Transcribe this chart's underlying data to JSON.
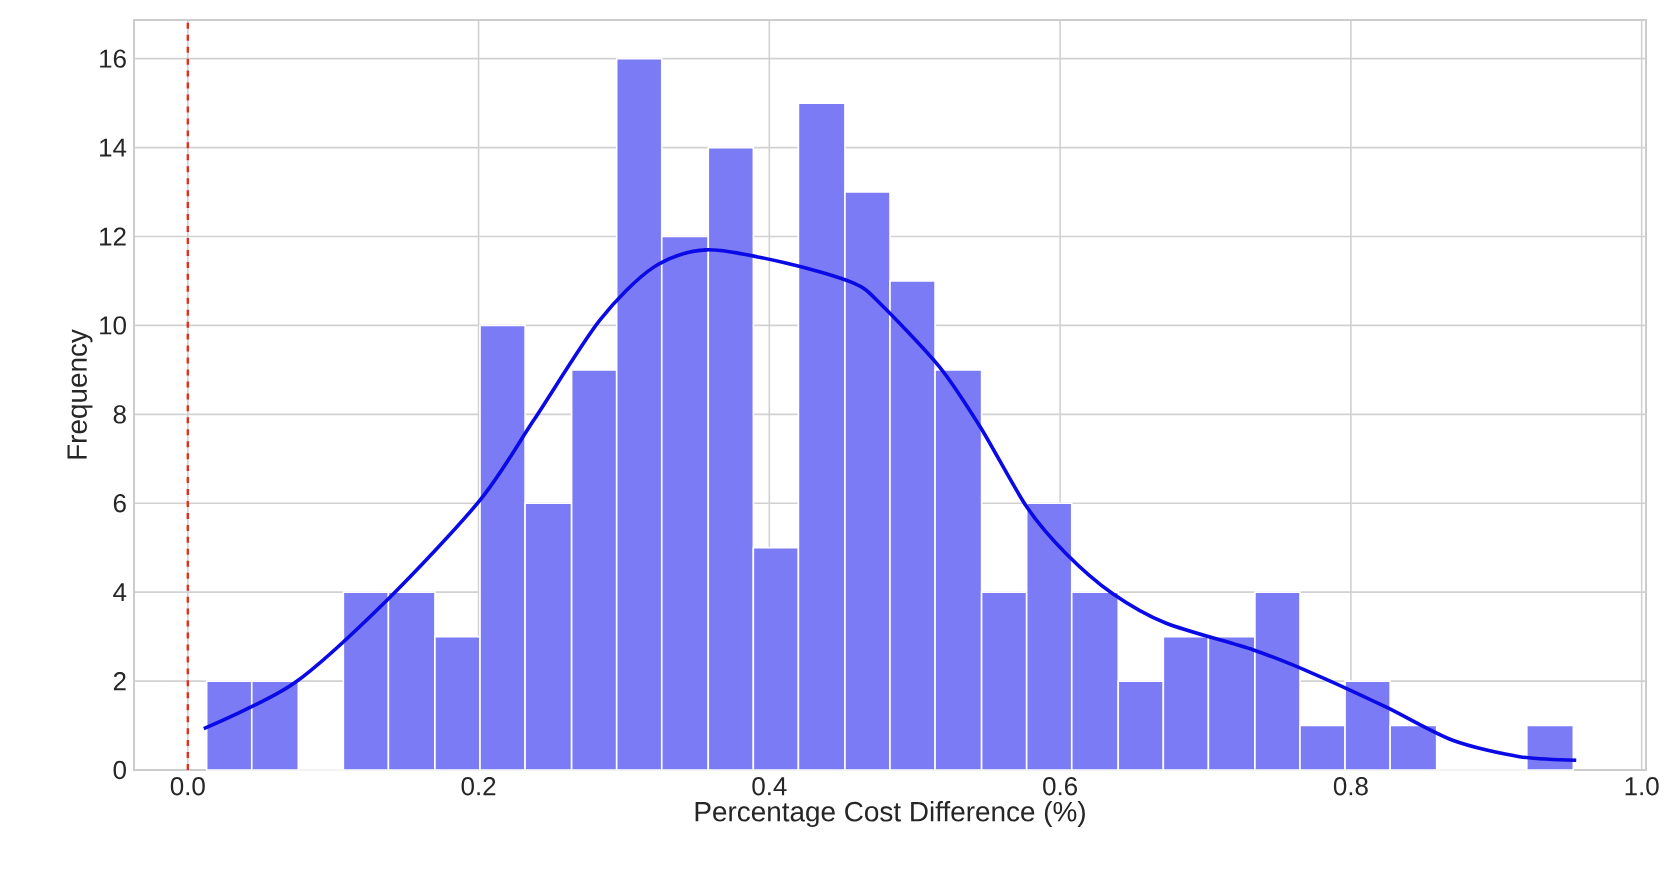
{
  "chart_data": {
    "type": "histogram",
    "xlabel": "Percentage Cost Difference (%)",
    "ylabel": "Frequency",
    "bins": [
      0.013,
      0.044,
      0.076,
      0.107,
      0.138,
      0.17,
      0.201,
      0.232,
      0.264,
      0.295,
      0.326,
      0.358,
      0.389,
      0.42,
      0.452,
      0.483,
      0.514,
      0.546,
      0.577,
      0.608,
      0.64,
      0.671,
      0.702,
      0.734,
      0.765,
      0.796,
      0.827,
      0.859,
      0.921,
      0.953
    ],
    "values": [
      2,
      2,
      0,
      4,
      4,
      3,
      10,
      6,
      9,
      16,
      12,
      14,
      5,
      15,
      13,
      11,
      9,
      4,
      6,
      4,
      2,
      3,
      3,
      4,
      1,
      2,
      1,
      0,
      1
    ],
    "color": "#7b7bf5",
    "series": [
      {
        "type": "line",
        "color": "#0a0ae6",
        "x": [
          0.011,
          0.073,
          0.137,
          0.201,
          0.238,
          0.283,
          0.32,
          0.357,
          0.412,
          0.458,
          0.476,
          0.517,
          0.545,
          0.577,
          0.604,
          0.636,
          0.673,
          0.733,
          0.774,
          0.824,
          0.87,
          0.916,
          0.955
        ],
        "values": [
          0.93,
          1.95,
          3.82,
          6.07,
          7.87,
          10.1,
          11.3,
          11.7,
          11.4,
          10.95,
          10.5,
          9.07,
          7.72,
          5.92,
          4.87,
          3.97,
          3.3,
          2.7,
          2.17,
          1.42,
          0.67,
          0.3,
          0.22
        ]
      }
    ],
    "ref_lines": [
      {
        "axis": "x",
        "value": 0,
        "color": "#e03020",
        "line_style": "dashed"
      }
    ],
    "xlim": [
      -0.037,
      1.003
    ],
    "ylim": [
      0,
      16.87
    ],
    "xticks": [
      {
        "value": 0,
        "label": "0.0"
      },
      {
        "value": 0.2,
        "label": "0.2"
      },
      {
        "value": 0.4,
        "label": "0.4"
      },
      {
        "value": 0.6,
        "label": "0.6"
      },
      {
        "value": 0.8,
        "label": "0.8"
      },
      {
        "value": 1,
        "label": "1.0"
      }
    ],
    "yticks": [
      0,
      2,
      4,
      6,
      8,
      10,
      12,
      14,
      16
    ],
    "grid": true
  }
}
